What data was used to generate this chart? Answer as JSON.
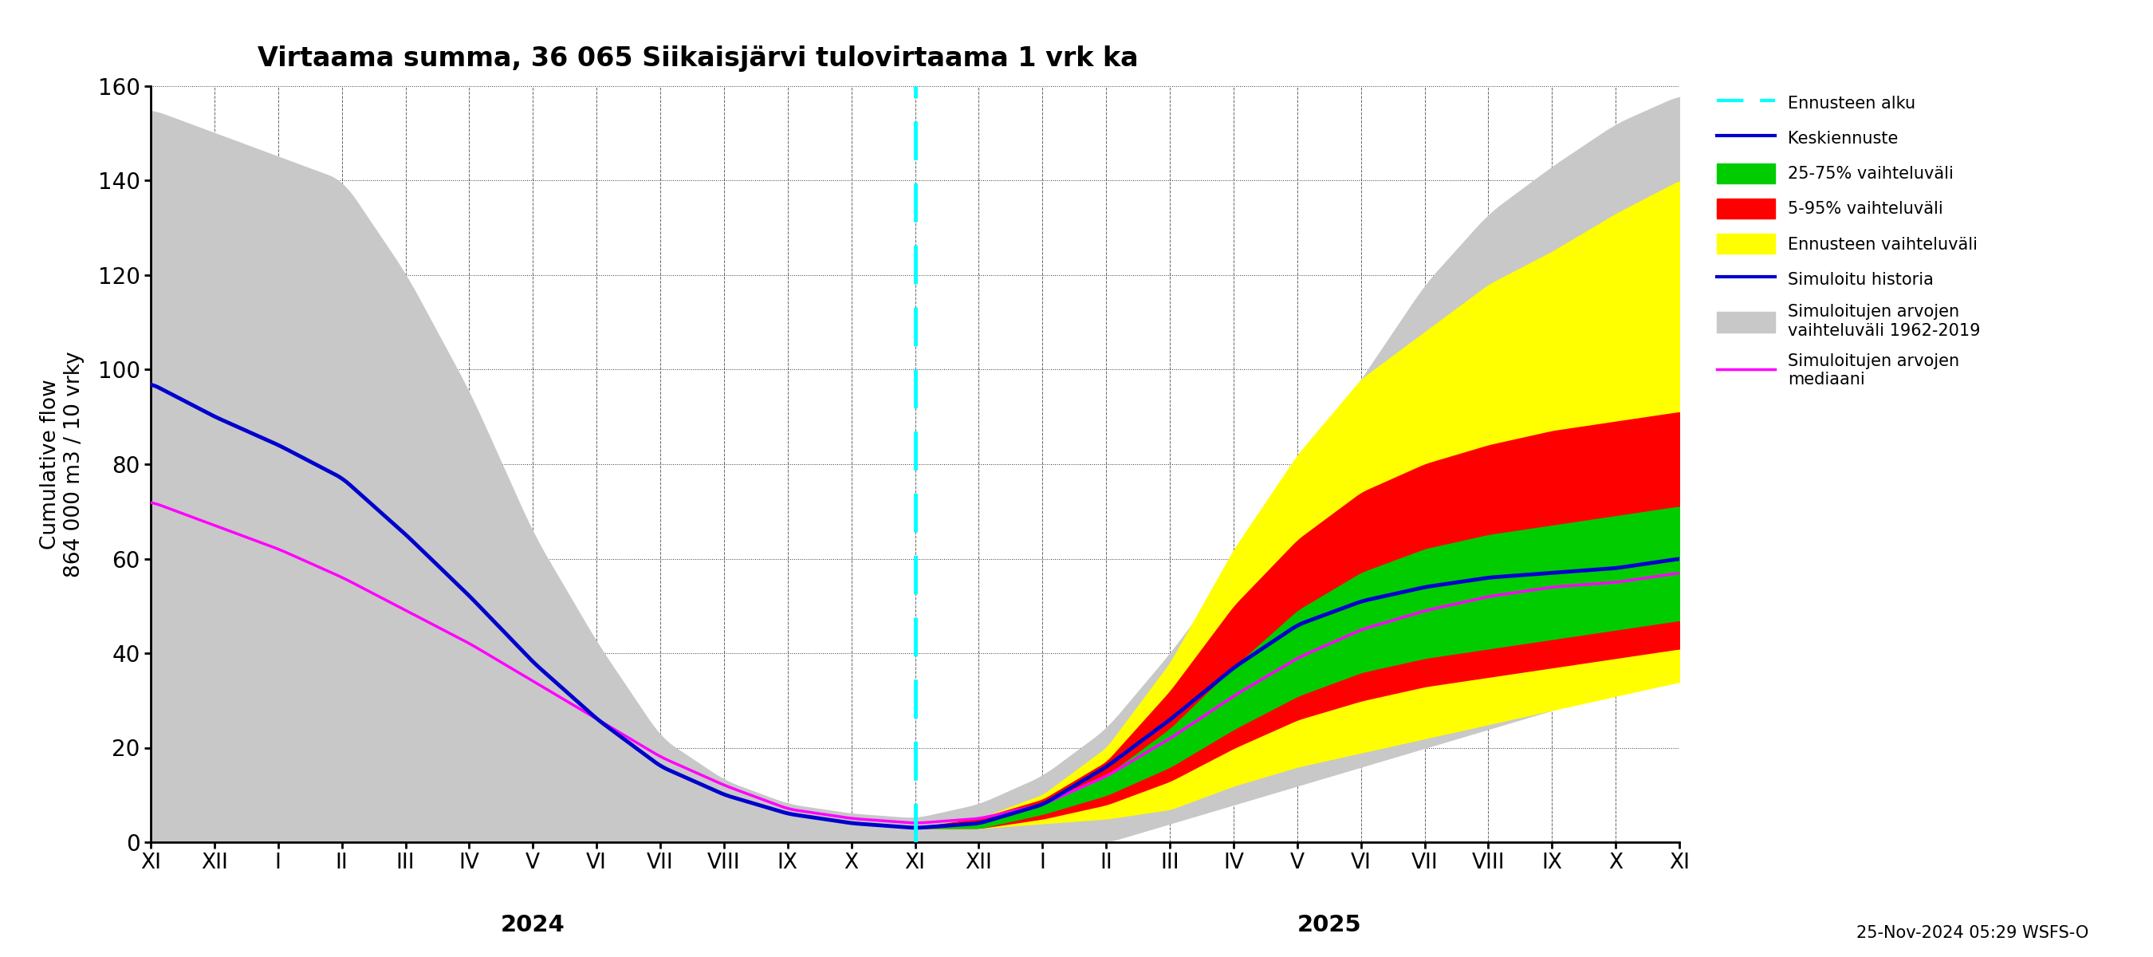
{
  "title": "Virtaama summa, 36 065 Siikaisjärvi tulovirtaama 1 vrk ka",
  "ylabel_top": "864 000 m3 / 10 vrky",
  "ylabel_bottom": "Cumulative flow",
  "footnote": "25-Nov-2024 05:29 WSFS-O",
  "ylim": [
    0,
    160
  ],
  "yticks": [
    0,
    20,
    40,
    60,
    80,
    100,
    120,
    140,
    160
  ],
  "year_left": "2024",
  "year_right": "2025",
  "forecast_x": 12.0,
  "xlim": [
    0,
    24
  ],
  "colors": {
    "gray_band": "#c8c8c8",
    "yellow_band": "#ffff00",
    "red_band": "#ff0000",
    "green_band": "#00cc00",
    "blue_line": "#0000cd",
    "magenta_line": "#ff00ff",
    "cyan_dashed": "#00ffff"
  },
  "xtick_labels": [
    "XI",
    "XII",
    "I",
    "II",
    "III",
    "IV",
    "V",
    "VI",
    "VII",
    "VIII",
    "IX",
    "X",
    "XI",
    "XII",
    "I",
    "II",
    "III",
    "IV",
    "V",
    "VI",
    "VII",
    "VIII",
    "IX",
    "X",
    "XI"
  ],
  "gray_upper": [
    155,
    150,
    145,
    140,
    120,
    95,
    65,
    42,
    22,
    13,
    8,
    6,
    5,
    8,
    14,
    24,
    40,
    58,
    78,
    98,
    118,
    133,
    143,
    152,
    158
  ],
  "gray_lower": [
    0,
    0,
    0,
    0,
    0,
    0,
    0,
    0,
    0,
    0,
    0,
    0,
    0,
    0,
    0,
    0,
    4,
    8,
    12,
    16,
    20,
    24,
    28,
    32,
    36
  ],
  "blue_pts": [
    97,
    90,
    84,
    77,
    65,
    52,
    38,
    26,
    16,
    10,
    6,
    4,
    3,
    4,
    8,
    16,
    26,
    37,
    46,
    51,
    54,
    56,
    57,
    58,
    60
  ],
  "magenta_pts": [
    72,
    67,
    62,
    56,
    49,
    42,
    34,
    26,
    18,
    12,
    7,
    5,
    4,
    5,
    8,
    14,
    22,
    31,
    39,
    45,
    49,
    52,
    54,
    55,
    57
  ],
  "yellow_upper_pts": [
    3,
    5,
    10,
    20,
    38,
    62,
    82,
    98,
    108,
    118,
    125,
    133,
    140
  ],
  "yellow_lower_pts": [
    3,
    3,
    4,
    5,
    7,
    12,
    16,
    19,
    22,
    25,
    28,
    31,
    34
  ],
  "red_upper_pts": [
    3,
    5,
    9,
    17,
    32,
    50,
    64,
    74,
    80,
    84,
    87,
    89,
    91
  ],
  "red_lower_pts": [
    3,
    3,
    5,
    8,
    13,
    20,
    26,
    30,
    33,
    35,
    37,
    39,
    41
  ],
  "green_upper_pts": [
    3,
    4,
    8,
    14,
    24,
    37,
    49,
    57,
    62,
    65,
    67,
    69,
    71
  ],
  "green_lower_pts": [
    3,
    3,
    6,
    10,
    16,
    24,
    31,
    36,
    39,
    41,
    43,
    45,
    47
  ],
  "legend_labels": [
    "Ennusteen alku",
    "Keskiennuste",
    "25-75% vaihteluväli",
    "5-95% vaihteluväli",
    "Ennusteen vaihteluväli",
    "Simuloitu historia",
    "Simuloitujen arvojen\nvaihteluväli 1962-2019",
    "Simuloitujen arvojen\nmediaani"
  ]
}
